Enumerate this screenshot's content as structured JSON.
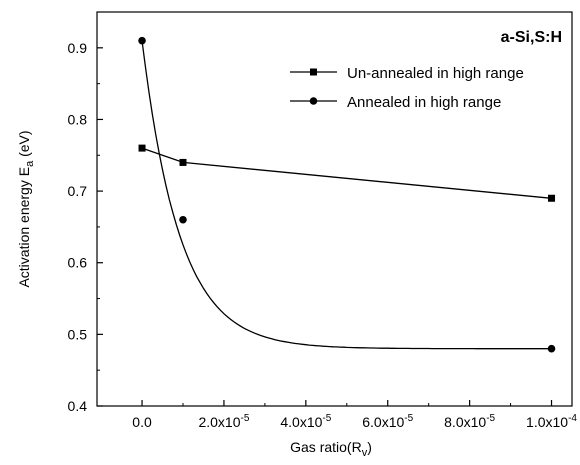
{
  "chart_data": {
    "type": "scatter",
    "title": "a-Si,S:H",
    "xlabel": "Gas ratio(R",
    "xlabel_sub": "v",
    "xlabel_end": ")",
    "ylabel": "Activation energy E",
    "ylabel_sub": "a",
    "ylabel_end": " (eV)",
    "xlim": [
      -1.1e-05,
      0.000105
    ],
    "ylim": [
      0.4,
      0.95
    ],
    "legend_position": "top-right",
    "grid": false,
    "y_ticks": [
      {
        "value": 0.4,
        "label": "0.4"
      },
      {
        "value": 0.5,
        "label": "0.5"
      },
      {
        "value": 0.6,
        "label": "0.6"
      },
      {
        "value": 0.7,
        "label": "0.7"
      },
      {
        "value": 0.8,
        "label": "0.8"
      },
      {
        "value": 0.9,
        "label": "0.9"
      }
    ],
    "x_ticks": [
      {
        "value": 0.0,
        "mantissa": "0.0",
        "exp": ""
      },
      {
        "value": 2e-05,
        "mantissa": "2.0x10",
        "exp": "-5"
      },
      {
        "value": 4e-05,
        "mantissa": "4.0x10",
        "exp": "-5"
      },
      {
        "value": 6e-05,
        "mantissa": "6.0x10",
        "exp": "-5"
      },
      {
        "value": 8e-05,
        "mantissa": "8.0x10",
        "exp": "-5"
      },
      {
        "value": 0.0001,
        "mantissa": "1.0x10",
        "exp": "-4"
      }
    ],
    "series": [
      {
        "name": "Un-annealed in high range",
        "marker": "square",
        "color": "#000000",
        "points": [
          {
            "x": 0.0,
            "y": 0.76
          },
          {
            "x": 1e-05,
            "y": 0.74
          },
          {
            "x": 0.0001,
            "y": 0.69
          }
        ]
      },
      {
        "name": "Annealed in high range",
        "marker": "circle",
        "color": "#000000",
        "points": [
          {
            "x": 0.0,
            "y": 0.91
          },
          {
            "x": 1e-05,
            "y": 0.66
          },
          {
            "x": 0.0001,
            "y": 0.48
          }
        ]
      }
    ]
  }
}
